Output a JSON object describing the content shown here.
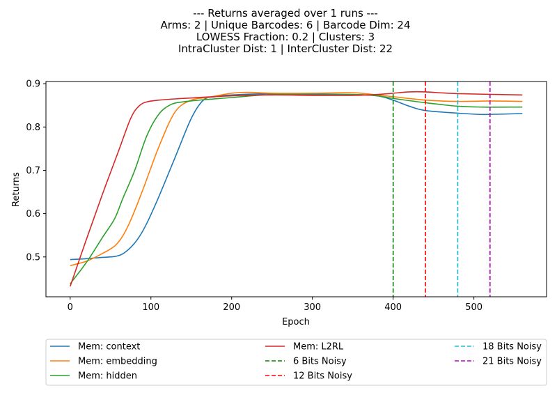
{
  "chart_data": {
    "type": "line",
    "title_lines": [
      "--- Returns averaged over 1 runs ---",
      "Arms: 2 | Unique Barcodes: 6 | Barcode Dim: 24",
      "LOWESS Fraction: 0.2 | Clusters: 3",
      "IntraCluster Dist: 1 | InterCluster Dist: 22"
    ],
    "xlabel": "Epoch",
    "ylabel": "Returns",
    "xlim": [
      -30,
      590
    ],
    "ylim": [
      0.408,
      0.905
    ],
    "xticks": [
      0,
      100,
      200,
      300,
      400,
      500
    ],
    "yticks": [
      0.5,
      0.6,
      0.7,
      0.8,
      0.9
    ],
    "ytick_labels": [
      "0.5",
      "0.6",
      "0.7",
      "0.8",
      "0.9"
    ],
    "grid": false,
    "legend_position": "bottom-outside",
    "series": [
      {
        "name": "Mem: context",
        "color": "#1f77b4",
        "x": [
          0,
          20,
          40,
          55,
          65,
          75,
          85,
          95,
          110,
          130,
          150,
          165,
          180,
          200,
          250,
          300,
          350,
          380,
          400,
          420,
          440,
          480,
          510,
          540,
          560
        ],
        "y": [
          0.494,
          0.496,
          0.499,
          0.501,
          0.507,
          0.522,
          0.545,
          0.578,
          0.64,
          0.73,
          0.82,
          0.862,
          0.87,
          0.874,
          0.877,
          0.876,
          0.875,
          0.872,
          0.862,
          0.848,
          0.838,
          0.832,
          0.829,
          0.83,
          0.831
        ]
      },
      {
        "name": "Mem: embedding",
        "color": "#ff7f0e",
        "x": [
          0,
          20,
          40,
          55,
          65,
          75,
          90,
          110,
          130,
          150,
          170,
          200,
          220,
          250,
          300,
          350,
          380,
          400,
          440,
          480,
          520,
          560
        ],
        "y": [
          0.48,
          0.49,
          0.508,
          0.525,
          0.548,
          0.585,
          0.655,
          0.755,
          0.835,
          0.862,
          0.868,
          0.878,
          0.88,
          0.878,
          0.878,
          0.879,
          0.874,
          0.87,
          0.862,
          0.859,
          0.86,
          0.859
        ]
      },
      {
        "name": "Mem: hidden",
        "color": "#2ca02c",
        "x": [
          0,
          20,
          40,
          55,
          65,
          80,
          95,
          110,
          125,
          140,
          160,
          200,
          250,
          300,
          350,
          380,
          400,
          440,
          480,
          510,
          560
        ],
        "y": [
          0.438,
          0.487,
          0.545,
          0.588,
          0.634,
          0.7,
          0.78,
          0.83,
          0.852,
          0.858,
          0.862,
          0.868,
          0.875,
          0.874,
          0.875,
          0.872,
          0.866,
          0.856,
          0.848,
          0.846,
          0.846
        ]
      },
      {
        "name": "Mem: L2RL",
        "color": "#d62728",
        "x": [
          0,
          20,
          40,
          60,
          75,
          85,
          95,
          110,
          140,
          200,
          250,
          300,
          350,
          380,
          400,
          420,
          440,
          480,
          560
        ],
        "y": [
          0.432,
          0.54,
          0.645,
          0.745,
          0.82,
          0.848,
          0.858,
          0.862,
          0.866,
          0.872,
          0.874,
          0.873,
          0.873,
          0.875,
          0.878,
          0.881,
          0.881,
          0.877,
          0.874
        ]
      }
    ],
    "vlines": [
      {
        "name": "6 Bits Noisy",
        "x": 400,
        "color": "#008000"
      },
      {
        "name": "12 Bits Noisy",
        "x": 440,
        "color": "#ff0000"
      },
      {
        "name": "18 Bits Noisy",
        "x": 480,
        "color": "#17becf"
      },
      {
        "name": "21 Bits Noisy",
        "x": 520,
        "color": "#bf00bf"
      }
    ]
  }
}
